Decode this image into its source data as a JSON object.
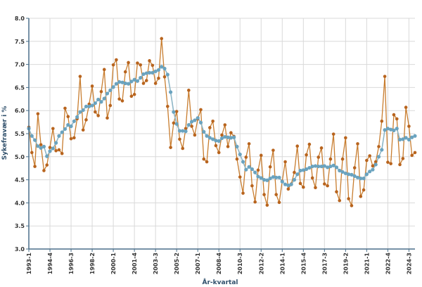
{
  "chart_data": {
    "type": "line",
    "xlabel": "År-kvartal",
    "ylabel": "Sykefravær i %",
    "ylim": [
      3.0,
      8.0
    ],
    "yticks": [
      "3.0",
      "3.5",
      "4.0",
      "4.5",
      "5.0",
      "5.5",
      "6.0",
      "6.5",
      "7.0",
      "7.5",
      "8.0"
    ],
    "x_start": "1993-1",
    "xticks": [
      "1993-1",
      "1994-4",
      "1996-3",
      "1998-2",
      "2000-1",
      "2001-4",
      "2003-3",
      "2005-2",
      "2007-1",
      "2008-4",
      "2010-3",
      "2012-2",
      "2014-1",
      "2015-4",
      "2017-3",
      "2019-2",
      "2021-1",
      "2022-4",
      "2024-3"
    ],
    "grid": true,
    "legend": "none",
    "colors": {
      "raw": "#c87d2f",
      "raw_marker": "#b8641e",
      "trend": "#8eb6c6",
      "trend_marker": "#6aa3bf"
    },
    "series": [
      {
        "values": [
          5.64,
          5.09,
          4.79,
          5.93,
          5.26,
          4.7,
          4.82,
          5.2,
          5.61,
          5.13,
          5.15,
          5.07,
          6.05,
          5.87,
          5.39,
          5.41,
          5.82,
          6.74,
          5.58,
          5.8,
          6.14,
          6.53,
          5.97,
          5.89,
          6.41,
          6.89,
          5.84,
          6.11,
          6.99,
          7.1,
          6.25,
          6.21,
          6.84,
          7.04,
          6.31,
          6.35,
          7.03,
          6.99,
          6.59,
          6.65,
          7.08,
          6.98,
          6.59,
          6.7,
          7.56,
          6.73,
          6.09,
          5.2,
          5.73,
          5.98,
          5.38,
          5.18,
          5.61,
          6.44,
          5.66,
          5.47,
          5.82,
          6.02,
          4.95,
          4.89,
          5.63,
          5.77,
          5.24,
          5.09,
          5.47,
          5.69,
          5.22,
          5.52,
          5.44,
          4.95,
          4.56,
          4.21,
          4.99,
          5.28,
          4.37,
          4.02,
          4.71,
          5.03,
          4.18,
          3.95,
          4.78,
          5.14,
          4.18,
          4.01,
          4.47,
          4.89,
          4.3,
          4.41,
          4.66,
          5.23,
          4.42,
          4.34,
          5.04,
          5.27,
          4.54,
          4.33,
          4.99,
          5.19,
          4.41,
          4.37,
          4.95,
          5.49,
          4.24,
          4.05,
          4.95,
          5.41,
          4.09,
          3.94,
          4.76,
          5.28,
          4.14,
          4.28,
          4.92,
          5.02,
          4.8,
          4.89,
          5.22,
          5.77,
          6.74,
          4.88,
          4.85,
          5.91,
          5.82,
          4.83,
          4.96,
          6.07,
          5.66,
          5.03,
          5.09
        ]
      },
      {
        "values": [
          5.61,
          5.45,
          5.36,
          5.23,
          5.19,
          5.22,
          5.01,
          5.12,
          5.18,
          5.3,
          5.45,
          5.53,
          5.6,
          5.69,
          5.66,
          5.77,
          5.86,
          5.97,
          6.01,
          6.09,
          6.09,
          6.11,
          6.16,
          6.24,
          6.19,
          6.26,
          6.37,
          6.44,
          6.51,
          6.58,
          6.62,
          6.61,
          6.59,
          6.58,
          6.63,
          6.67,
          6.64,
          6.71,
          6.79,
          6.81,
          6.82,
          6.82,
          6.85,
          6.88,
          6.95,
          6.91,
          6.78,
          6.4,
          5.97,
          5.71,
          5.56,
          5.56,
          5.55,
          5.69,
          5.76,
          5.79,
          5.84,
          5.74,
          5.54,
          5.45,
          5.41,
          5.38,
          5.35,
          5.34,
          5.4,
          5.43,
          5.42,
          5.41,
          5.42,
          5.22,
          5.05,
          4.89,
          4.72,
          4.78,
          4.73,
          4.66,
          4.57,
          4.54,
          4.5,
          4.49,
          4.53,
          4.56,
          4.55,
          4.55,
          4.46,
          4.4,
          4.38,
          4.4,
          4.5,
          4.62,
          4.7,
          4.71,
          4.73,
          4.76,
          4.79,
          4.8,
          4.79,
          4.79,
          4.8,
          4.77,
          4.79,
          4.81,
          4.77,
          4.7,
          4.67,
          4.64,
          4.62,
          4.61,
          4.58,
          4.55,
          4.53,
          4.53,
          4.62,
          4.68,
          4.72,
          4.83,
          5.0,
          5.15,
          5.58,
          5.61,
          5.59,
          5.57,
          5.61,
          5.37,
          5.38,
          5.41,
          5.37,
          5.42,
          5.45
        ]
      }
    ]
  }
}
